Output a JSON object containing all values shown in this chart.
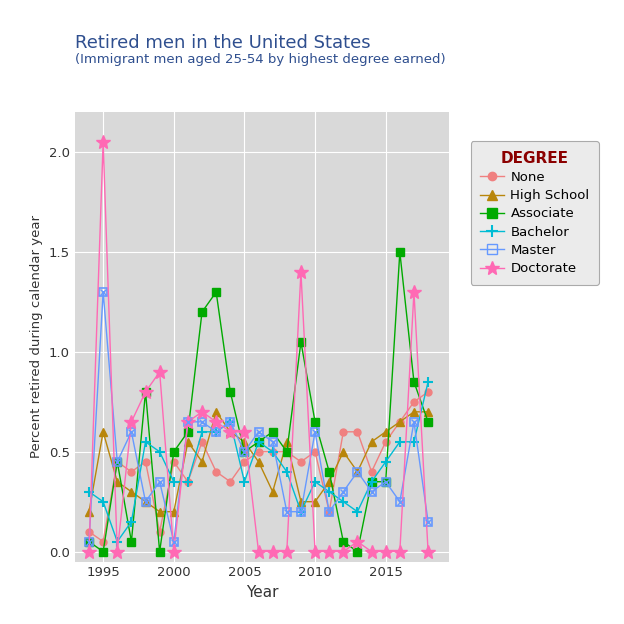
{
  "title": "Retired men in the United States",
  "subtitle": "(Immigrant men aged 25-54 by highest degree earned)",
  "xlabel": "Year",
  "ylabel": "Percent retired during calendar year",
  "plot_bg_color": "#d9d9d9",
  "fig_bg_color": "#ffffff",
  "legend_title": "DEGREE",
  "legend_title_color": "#8B0000",
  "years": [
    1994,
    1995,
    1996,
    1997,
    1998,
    1999,
    2000,
    2001,
    2002,
    2003,
    2004,
    2005,
    2006,
    2007,
    2008,
    2009,
    2010,
    2011,
    2012,
    2013,
    2014,
    2015,
    2016,
    2017,
    2018
  ],
  "series": {
    "None": {
      "color": "#f08080",
      "marker": "o",
      "marker_size": 5,
      "values": [
        0.1,
        0.05,
        0.45,
        0.4,
        0.45,
        0.1,
        0.45,
        0.35,
        0.55,
        0.4,
        0.35,
        0.45,
        0.5,
        0.5,
        0.5,
        0.45,
        0.5,
        0.2,
        0.6,
        0.6,
        0.4,
        0.55,
        0.65,
        0.75,
        0.8
      ]
    },
    "High School": {
      "color": "#b8860b",
      "marker": "^",
      "marker_size": 6,
      "values": [
        0.2,
        0.6,
        0.35,
        0.3,
        0.25,
        0.2,
        0.2,
        0.55,
        0.45,
        0.7,
        0.6,
        0.55,
        0.45,
        0.3,
        0.55,
        0.25,
        0.25,
        0.35,
        0.5,
        0.4,
        0.55,
        0.6,
        0.65,
        0.7,
        0.7
      ]
    },
    "Associate": {
      "color": "#00aa00",
      "marker": "s",
      "marker_size": 6,
      "values": [
        0.05,
        0.0,
        0.45,
        0.05,
        0.8,
        0.0,
        0.5,
        0.6,
        1.2,
        1.3,
        0.8,
        0.5,
        0.55,
        0.6,
        0.5,
        1.05,
        0.65,
        0.4,
        0.05,
        0.0,
        0.35,
        0.35,
        1.5,
        0.85,
        0.65
      ]
    },
    "Bachelor": {
      "color": "#00bcd4",
      "marker": "+",
      "marker_size": 7,
      "values": [
        0.3,
        0.25,
        0.05,
        0.15,
        0.55,
        0.5,
        0.35,
        0.35,
        0.6,
        0.6,
        0.65,
        0.35,
        0.55,
        0.5,
        0.4,
        0.2,
        0.35,
        0.3,
        0.25,
        0.2,
        0.35,
        0.45,
        0.55,
        0.55,
        0.85
      ]
    },
    "Master": {
      "color": "#6699ff",
      "marker": "s",
      "marker_size": 6,
      "values": [
        0.05,
        1.3,
        0.45,
        0.6,
        0.25,
        0.35,
        0.05,
        0.65,
        0.65,
        0.6,
        0.65,
        0.5,
        0.6,
        0.55,
        0.2,
        0.2,
        0.6,
        0.2,
        0.3,
        0.4,
        0.3,
        0.35,
        0.25,
        0.65,
        0.15
      ]
    },
    "Doctorate": {
      "color": "#ff69b4",
      "marker": "*",
      "marker_size": 8,
      "values": [
        0.0,
        2.05,
        0.0,
        0.65,
        0.8,
        0.9,
        0.0,
        0.65,
        0.7,
        0.65,
        0.6,
        0.6,
        0.0,
        0.0,
        0.0,
        1.4,
        0.0,
        0.0,
        0.0,
        0.05,
        0.0,
        0.0,
        0.0,
        1.3,
        0.0
      ]
    }
  },
  "ylim": [
    -0.05,
    2.2
  ],
  "yticks": [
    0.0,
    0.5,
    1.0,
    1.5,
    2.0
  ],
  "xticks": [
    1995,
    2000,
    2005,
    2010,
    2015
  ],
  "grid_color": "#ffffff",
  "title_color": "#2F4F8F",
  "axis_label_color": "#333333",
  "tick_label_color": "#333333"
}
